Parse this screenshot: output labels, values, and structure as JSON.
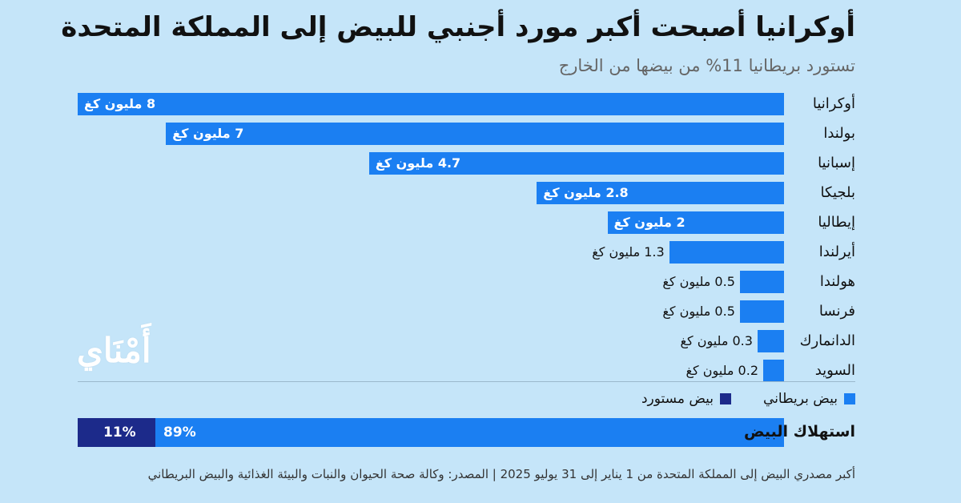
{
  "header": {
    "title": "أوكرانيا أصبحت أكبر مورد أجنبي للبيض إلى المملكة المتحدة",
    "subtitle": "تستورد بريطانيا 11% من بيضها من الخارج"
  },
  "logo": {
    "text": "أَمْنَاي"
  },
  "colors": {
    "background": "#c5e5f9",
    "british": "#1b7ff2",
    "imported": "#1c2a8a"
  },
  "chart_data": [
    {
      "type": "bar",
      "orientation": "horizontal",
      "unit": "مليون كغ",
      "categories": [
        "أوكرانيا",
        "بولندا",
        "إسبانيا",
        "بلجيكا",
        "إيطاليا",
        "أيرلندا",
        "هولندا",
        "فرنسا",
        "الدانمارك",
        "السويد"
      ],
      "values": [
        8,
        7,
        4.7,
        2.8,
        2,
        1.3,
        0.5,
        0.5,
        0.3,
        0.2
      ],
      "value_labels": [
        "8 مليون كغ",
        "7 مليون كغ",
        "4.7 مليون كغ",
        "2.8 مليون كغ",
        "2 مليون كغ",
        "1.3 مليون كغ",
        "0.5 مليون كغ",
        "0.5 مليون كغ",
        "0.3 مليون كغ",
        "0.2 مليون كغ"
      ],
      "xlim": [
        0,
        8
      ],
      "grid": false
    },
    {
      "type": "bar",
      "orientation": "horizontal",
      "stacked": true,
      "categories": [
        "استهلاك البيض"
      ],
      "series": [
        {
          "name": "بيض بريطاني",
          "values": [
            89
          ],
          "label": "89%"
        },
        {
          "name": "بيض مستورد",
          "values": [
            11
          ],
          "label": "11%"
        }
      ],
      "xlim": [
        0,
        100
      ],
      "legend": "top-right"
    }
  ],
  "footer": {
    "text": "أكبر مصدري البيض إلى المملكة المتحدة من 1 يناير إلى 31 يوليو 2025 | المصدر: وكالة صحة الحيوان والنبات والبيئة الغذائية والبيض البريطاني"
  }
}
